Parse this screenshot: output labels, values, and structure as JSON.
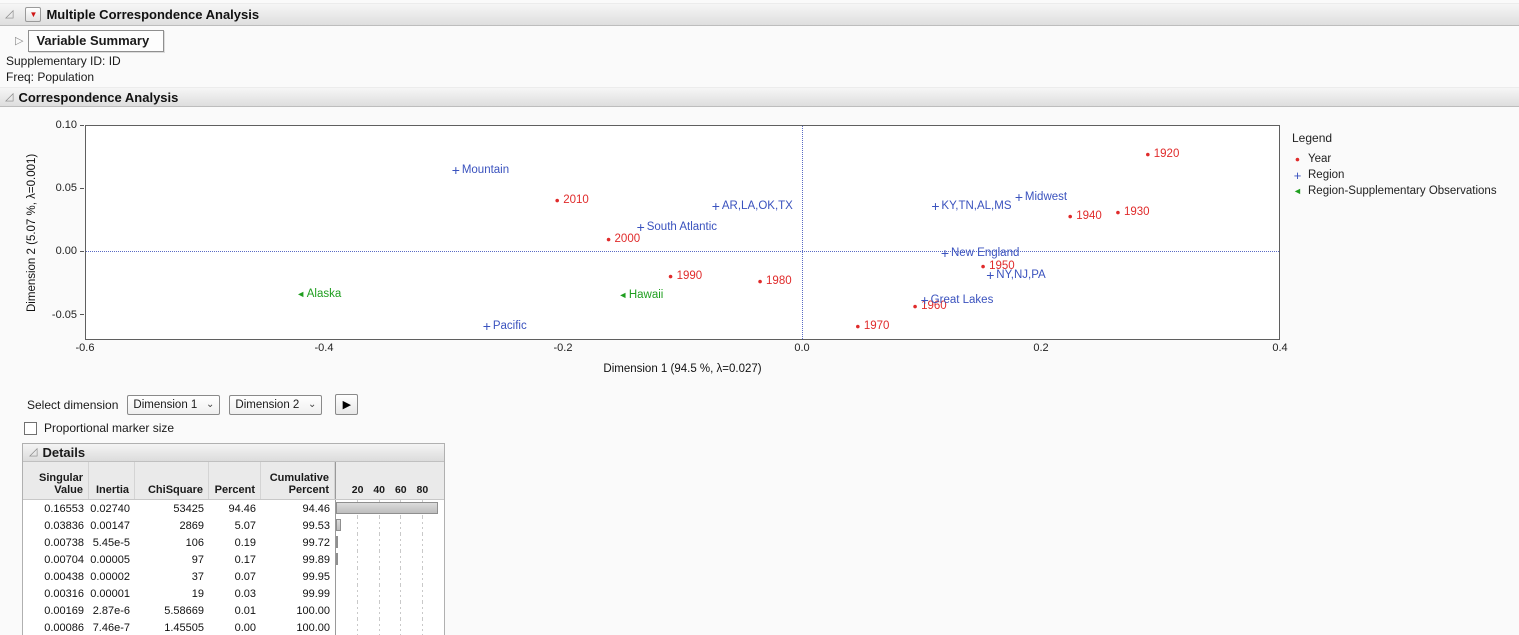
{
  "window": {
    "title": "Multiple Correspondence Analysis",
    "variable_summary_title": "Variable Summary",
    "supplementary_line": "Supplementary ID: ID",
    "freq_line": "Freq: Population",
    "correspondence_title": "Correspondence Analysis",
    "details_title": "Details"
  },
  "icons": {
    "disclosure_open": "◿",
    "disclosure_collapsed": "▷",
    "red_triangle": "▼",
    "dropdown_chevron": "⌄",
    "next_arrow": "▶",
    "marker_dot": "●",
    "marker_plus": "+",
    "marker_left_triangle": "◄",
    "checkbox_check": "✓"
  },
  "chart_data": {
    "type": "scatter",
    "xlabel": "Dimension 1  (94.5 %, λ=0.027)",
    "ylabel": "Dimension 2  (5.07 %, λ=0.001)",
    "xlim": [
      -0.6,
      0.4
    ],
    "ylim": [
      -0.07,
      0.1
    ],
    "x_ticks": [
      {
        "v": -0.6,
        "label": "-0.6"
      },
      {
        "v": -0.4,
        "label": "-0.4"
      },
      {
        "v": -0.2,
        "label": "-0.2"
      },
      {
        "v": 0,
        "label": "0.0"
      },
      {
        "v": 0.2,
        "label": "0.2"
      },
      {
        "v": 0.4,
        "label": "0.4"
      }
    ],
    "y_ticks": [
      {
        "v": 0.1,
        "label": "0.10"
      },
      {
        "v": 0.05,
        "label": "0.05"
      },
      {
        "v": 0,
        "label": "0.00"
      },
      {
        "v": -0.05,
        "label": "-0.05"
      }
    ],
    "reference_lines": {
      "x": 0,
      "y": 0,
      "color": "#5a6bc4"
    },
    "legend": {
      "title": "Legend",
      "position": "right"
    },
    "series": [
      {
        "name": "Year",
        "marker": "dot",
        "color": "#e02b2b",
        "points": [
          {
            "label": "1920",
            "x": 0.29,
            "y": 0.078
          },
          {
            "label": "1930",
            "x": 0.265,
            "y": 0.031
          },
          {
            "label": "1940",
            "x": 0.225,
            "y": 0.028
          },
          {
            "label": "1950",
            "x": 0.152,
            "y": -0.012
          },
          {
            "label": "1960",
            "x": 0.095,
            "y": -0.044
          },
          {
            "label": "1970",
            "x": 0.047,
            "y": -0.06
          },
          {
            "label": "1980",
            "x": -0.035,
            "y": -0.024
          },
          {
            "label": "1990",
            "x": -0.11,
            "y": -0.02
          },
          {
            "label": "2000",
            "x": -0.162,
            "y": 0.01
          },
          {
            "label": "2010",
            "x": -0.205,
            "y": 0.041
          }
        ]
      },
      {
        "name": "Region",
        "marker": "plus",
        "color": "#3a52be",
        "points": [
          {
            "label": "Mountain",
            "x": -0.29,
            "y": 0.065
          },
          {
            "label": "AR,LA,OK,TX",
            "x": -0.072,
            "y": 0.036
          },
          {
            "label": "South Atlantic",
            "x": -0.135,
            "y": 0.019
          },
          {
            "label": "KY,TN,AL,MS",
            "x": 0.112,
            "y": 0.036
          },
          {
            "label": "Midwest",
            "x": 0.182,
            "y": 0.043
          },
          {
            "label": "New England",
            "x": 0.12,
            "y": -0.001
          },
          {
            "label": "NY,NJ,PA",
            "x": 0.158,
            "y": -0.019
          },
          {
            "label": "Great Lakes",
            "x": 0.103,
            "y": -0.039
          },
          {
            "label": "Pacific",
            "x": -0.264,
            "y": -0.06
          }
        ]
      },
      {
        "name": "Region-Supplementary Observations",
        "marker": "left-triangle",
        "color": "#1f9e1f",
        "points": [
          {
            "label": "Alaska",
            "x": -0.42,
            "y": -0.034
          },
          {
            "label": "Hawaii",
            "x": -0.15,
            "y": -0.035
          }
        ]
      }
    ]
  },
  "controls": {
    "select_dimension_label": "Select dimension",
    "dimension_x": "Dimension 1",
    "dimension_y": "Dimension 2",
    "proportional_label": "Proportional marker size",
    "proportional_checked": false
  },
  "details_table": {
    "columns": [
      "Singular\nValue",
      "Inertia",
      "ChiSquare",
      "Percent",
      "Cumulative\nPercent"
    ],
    "bar_ticks": [
      {
        "v": 20,
        "label": "20"
      },
      {
        "v": 40,
        "label": "40"
      },
      {
        "v": 60,
        "label": "60"
      },
      {
        "v": 80,
        "label": "80"
      }
    ],
    "rows": [
      {
        "singular_value": "0.16553",
        "inertia": "0.02740",
        "chisquare": "53425",
        "percent": "94.46",
        "cumulative_percent": "94.46",
        "bar": 94.46
      },
      {
        "singular_value": "0.03836",
        "inertia": "0.00147",
        "chisquare": "2869",
        "percent": "5.07",
        "cumulative_percent": "99.53",
        "bar": 5.07
      },
      {
        "singular_value": "0.00738",
        "inertia": "5.45e-5",
        "chisquare": "106",
        "percent": "0.19",
        "cumulative_percent": "99.72",
        "bar": 0.19
      },
      {
        "singular_value": "0.00704",
        "inertia": "0.00005",
        "chisquare": "97",
        "percent": "0.17",
        "cumulative_percent": "99.89",
        "bar": 0.17
      },
      {
        "singular_value": "0.00438",
        "inertia": "0.00002",
        "chisquare": "37",
        "percent": "0.07",
        "cumulative_percent": "99.95",
        "bar": 0.07
      },
      {
        "singular_value": "0.00316",
        "inertia": "0.00001",
        "chisquare": "19",
        "percent": "0.03",
        "cumulative_percent": "99.99",
        "bar": 0.03
      },
      {
        "singular_value": "0.00169",
        "inertia": "2.87e-6",
        "chisquare": "5.58669",
        "percent": "0.01",
        "cumulative_percent": "100.00",
        "bar": 0.01
      },
      {
        "singular_value": "0.00086",
        "inertia": "7.46e-7",
        "chisquare": "1.45505",
        "percent": "0.00",
        "cumulative_percent": "100.00",
        "bar": 0
      }
    ]
  }
}
